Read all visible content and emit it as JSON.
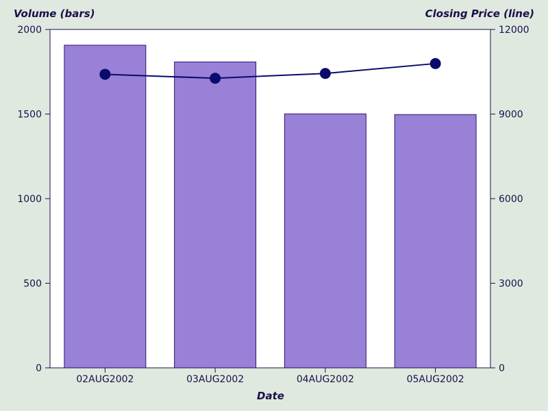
{
  "chart_data": {
    "type": "bar",
    "categories": [
      "02AUG2002",
      "03AUG2002",
      "04AUG2002",
      "05AUG2002"
    ],
    "series": [
      {
        "type": "bar",
        "axis": "left",
        "values": [
          1907,
          1808,
          1501,
          1497
        ]
      },
      {
        "type": "line",
        "axis": "right",
        "values": [
          10410,
          10270,
          10440,
          10790
        ]
      }
    ],
    "ylabel": "Volume (bars)",
    "y2label": "Closing Price (line)",
    "xlabel": "Date",
    "ylim": [
      0,
      2000
    ],
    "y2lim": [
      0,
      12000
    ],
    "yticks": [
      "0",
      "500",
      "1000",
      "1500",
      "2000"
    ],
    "y2ticks": [
      "0",
      "3000",
      "6000",
      "9000",
      "12000"
    ],
    "grid": false,
    "colors": {
      "background": "#dfe9df",
      "plot_background": "#ffffff",
      "bar_fill": "#9881d6",
      "bar_stroke": "#2a1470",
      "line": "#0a0a6e",
      "text": "#1a0f4a",
      "axis": "#1a0f4a"
    }
  }
}
